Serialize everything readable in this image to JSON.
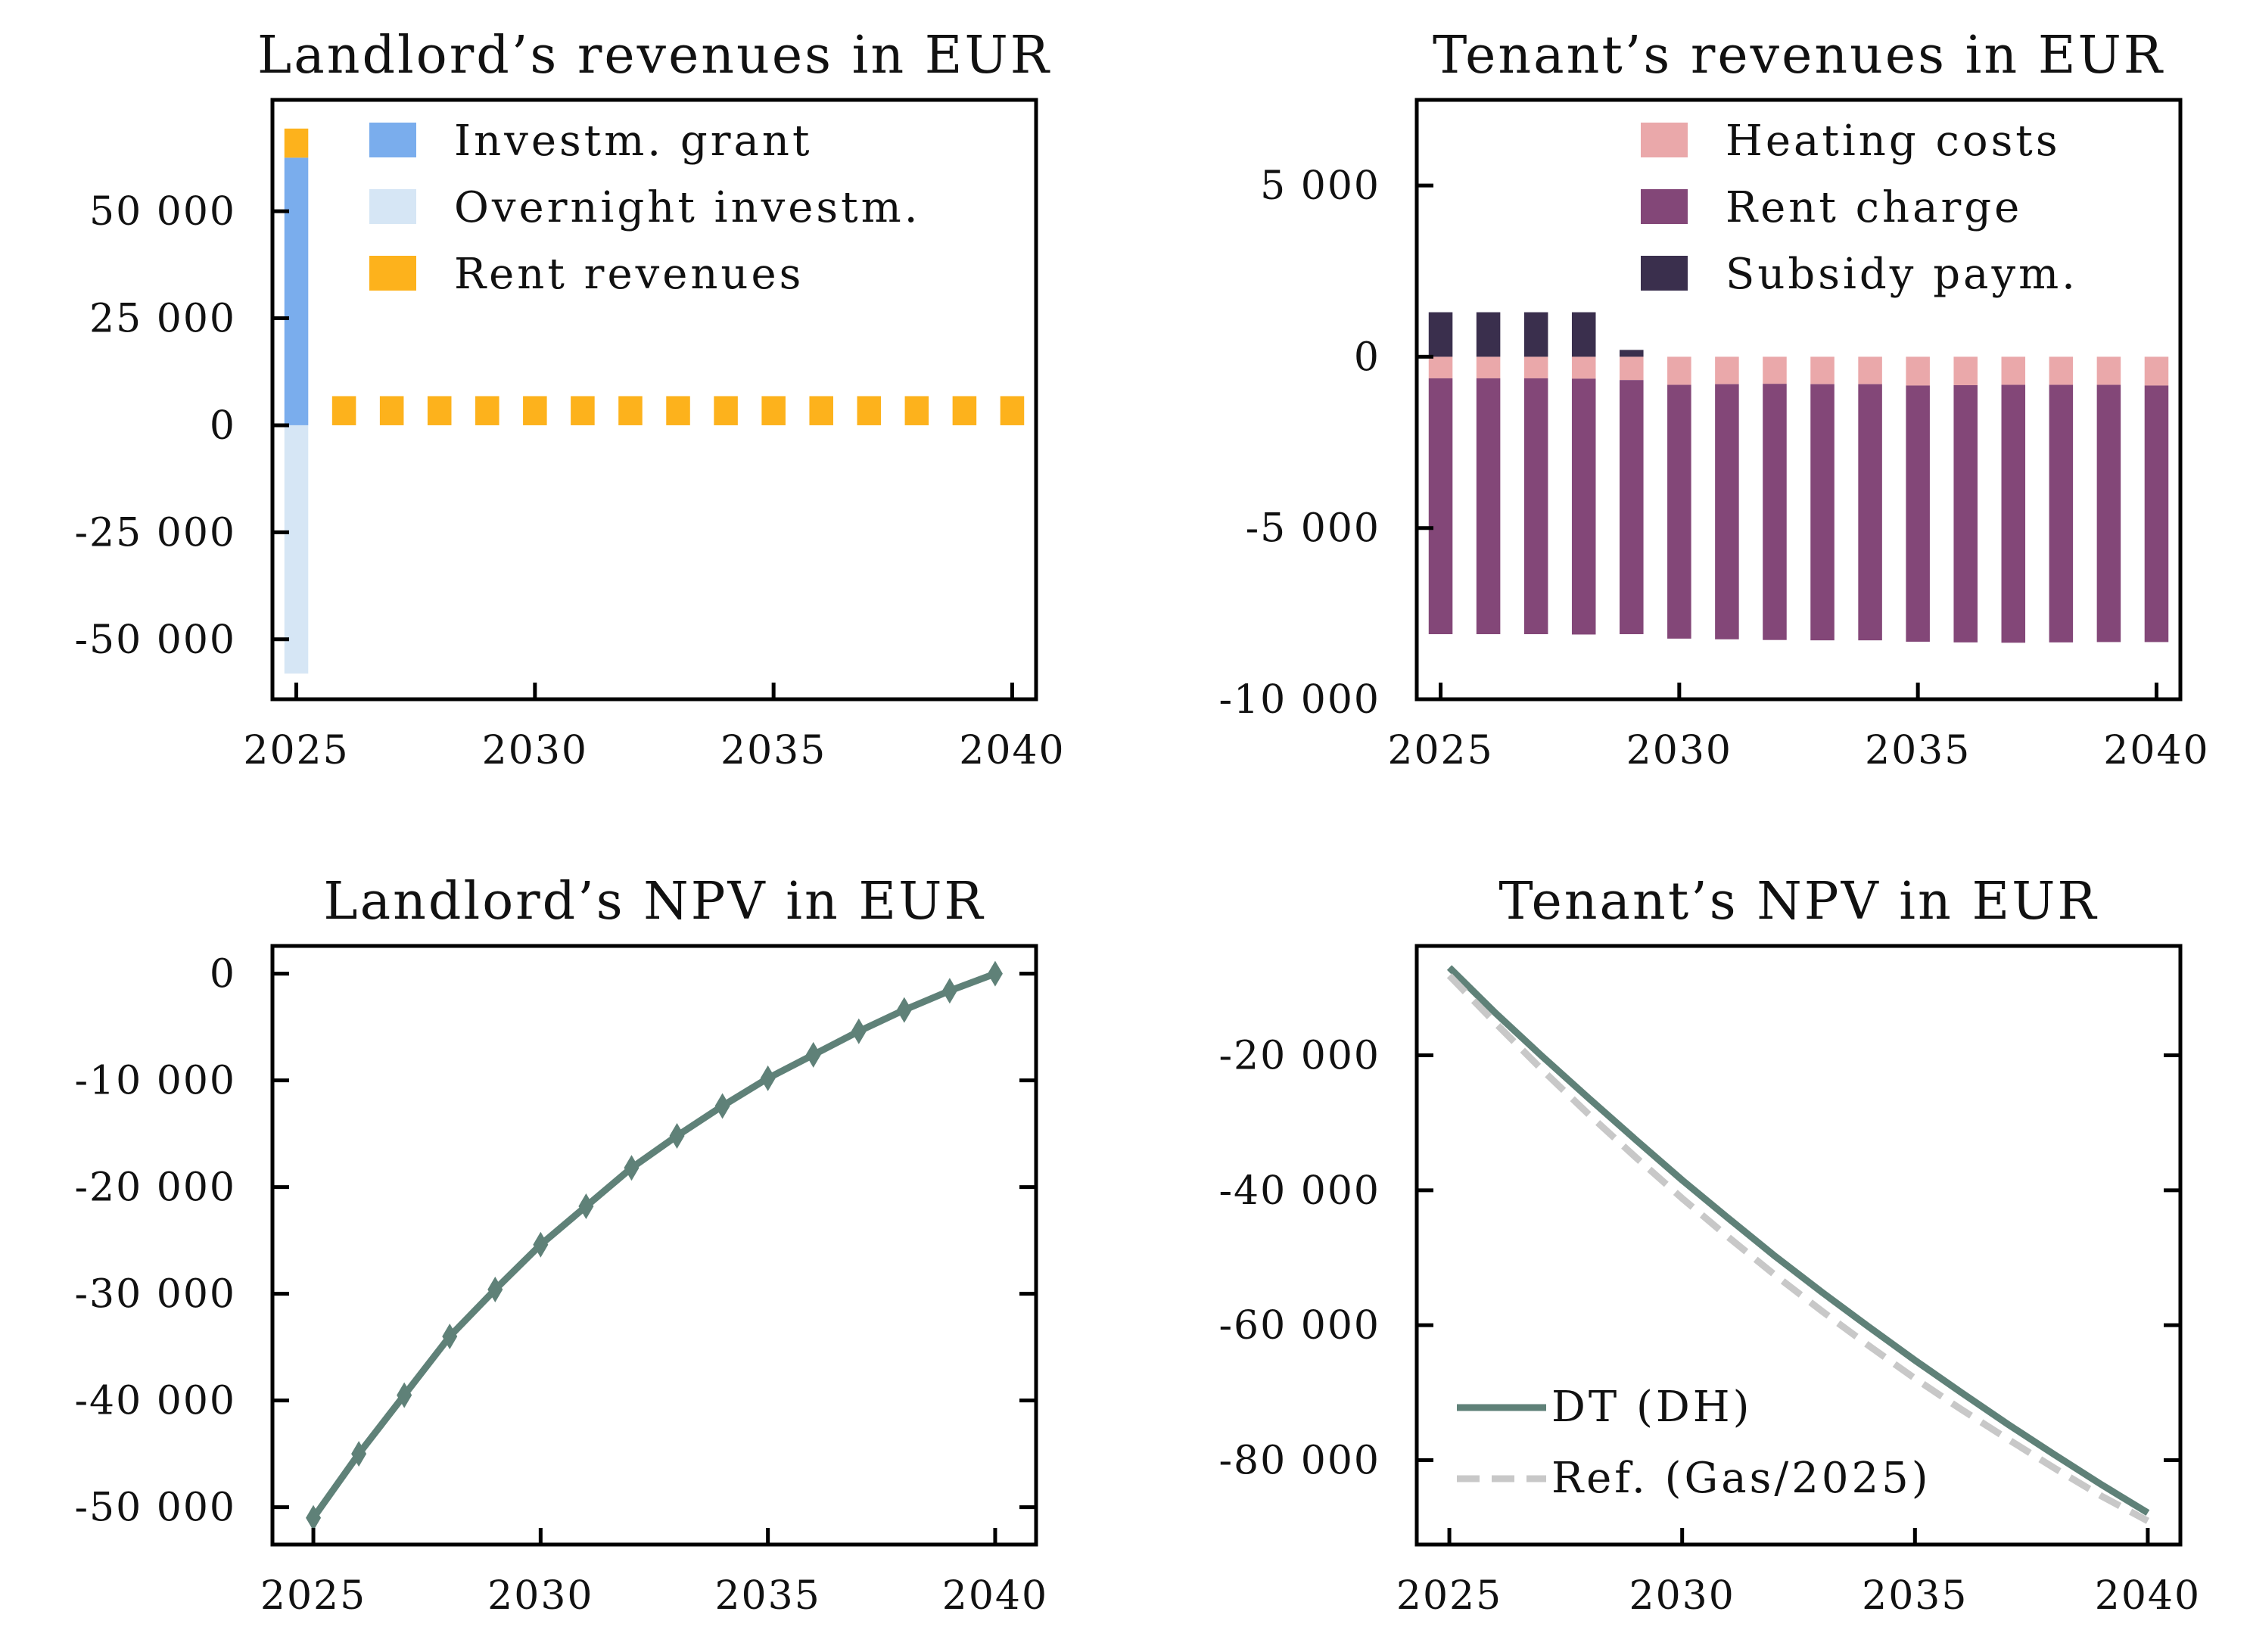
{
  "colors": {
    "investm_grant": "#7aaded",
    "overnight_investm": "#d6e6f5",
    "rent_revenues": "#fdb21c",
    "heating_costs": "#eaa8aa",
    "rent_charge": "#834778",
    "subsidy_paym": "#3a2f4d",
    "npv_line": "#5f8178",
    "ref_line": "#c8c8c8"
  },
  "chart_data": [
    {
      "type": "bar",
      "title": "Landlord’s revenues in EUR",
      "x": [
        2025,
        2026,
        2027,
        2028,
        2029,
        2030,
        2031,
        2032,
        2033,
        2034,
        2035,
        2036,
        2037,
        2038,
        2039,
        2040
      ],
      "xlim": [
        2024.5,
        2040.5
      ],
      "ylim": [
        -64000,
        76000
      ],
      "xticks": [
        {
          "v": 2025,
          "label": "2025"
        },
        {
          "v": 2030,
          "label": "2030"
        },
        {
          "v": 2035,
          "label": "2035"
        },
        {
          "v": 2040,
          "label": "2040"
        }
      ],
      "yticks": [
        {
          "v": 50000,
          "label": "50 000"
        },
        {
          "v": 25000,
          "label": "25 000"
        },
        {
          "v": 0,
          "label": "0"
        },
        {
          "v": -25000,
          "label": "-25 000"
        },
        {
          "v": -50000,
          "label": "-50 000"
        }
      ],
      "legend_position": "top-right",
      "series": [
        {
          "name": "Investm. grant",
          "color_key": "investm_grant",
          "values": [
            62500,
            0,
            0,
            0,
            0,
            0,
            0,
            0,
            0,
            0,
            0,
            0,
            0,
            0,
            0,
            0
          ]
        },
        {
          "name": "Overnight investm.",
          "color_key": "overnight_investm",
          "values": [
            -58000,
            0,
            0,
            0,
            0,
            0,
            0,
            0,
            0,
            0,
            0,
            0,
            0,
            0,
            0,
            0
          ]
        },
        {
          "name": "Rent revenues",
          "color_key": "rent_revenues",
          "values": [
            6800,
            6800,
            6800,
            6800,
            6800,
            6800,
            6800,
            6800,
            6800,
            6800,
            6800,
            6800,
            6800,
            6800,
            6800,
            6800
          ]
        }
      ]
    },
    {
      "type": "bar",
      "title": "Tenant’s revenues in EUR",
      "x": [
        2025,
        2026,
        2027,
        2028,
        2029,
        2030,
        2031,
        2032,
        2033,
        2034,
        2035,
        2036,
        2037,
        2038,
        2039,
        2040
      ],
      "xlim": [
        2024.5,
        2040.5
      ],
      "ylim": [
        -10000,
        7500
      ],
      "xticks": [
        {
          "v": 2025,
          "label": "2025"
        },
        {
          "v": 2030,
          "label": "2030"
        },
        {
          "v": 2035,
          "label": "2035"
        },
        {
          "v": 2040,
          "label": "2040"
        }
      ],
      "yticks": [
        {
          "v": 5000,
          "label": "5 000"
        },
        {
          "v": 0,
          "label": "0"
        },
        {
          "v": -5000,
          "label": "-5 000"
        },
        {
          "v": -10000,
          "label": "-10 000"
        }
      ],
      "legend_position": "top-right",
      "series": [
        {
          "name": "Heating costs",
          "color_key": "heating_costs",
          "values": [
            -630,
            -630,
            -630,
            -640,
            -680,
            -820,
            -800,
            -790,
            -800,
            -800,
            -840,
            -830,
            -820,
            -820,
            -820,
            -840
          ]
        },
        {
          "name": "Rent charge",
          "color_key": "rent_charge",
          "values": [
            -7470,
            -7470,
            -7470,
            -7470,
            -7420,
            -7410,
            -7450,
            -7480,
            -7480,
            -7480,
            -7480,
            -7510,
            -7530,
            -7520,
            -7510,
            -7490
          ]
        },
        {
          "name": "Subsidy paym.",
          "color_key": "subsidy_paym",
          "values": [
            1300,
            1300,
            1300,
            1300,
            200,
            0,
            0,
            0,
            0,
            0,
            0,
            0,
            0,
            0,
            0,
            0
          ]
        }
      ]
    },
    {
      "type": "line",
      "title": "Landlord’s NPV in EUR",
      "x": [
        2025,
        2026,
        2027,
        2028,
        2029,
        2030,
        2031,
        2032,
        2033,
        2034,
        2035,
        2036,
        2037,
        2038,
        2039,
        2040
      ],
      "xlim": [
        2024.1,
        2040.9
      ],
      "ylim": [
        -53500,
        2600
      ],
      "xticks": [
        {
          "v": 2025,
          "label": "2025"
        },
        {
          "v": 2030,
          "label": "2030"
        },
        {
          "v": 2035,
          "label": "2035"
        },
        {
          "v": 2040,
          "label": "2040"
        }
      ],
      "yticks": [
        {
          "v": 0,
          "label": "0"
        },
        {
          "v": -10000,
          "label": "-10 000"
        },
        {
          "v": -20000,
          "label": "-20 000"
        },
        {
          "v": -30000,
          "label": "-30 000"
        },
        {
          "v": -40000,
          "label": "-40 000"
        },
        {
          "v": -50000,
          "label": "-50 000"
        }
      ],
      "series": [
        {
          "color_key": "npv_line",
          "marker": "thin_diamond",
          "values": [
            -51000,
            -45000,
            -39500,
            -34000,
            -29600,
            -25400,
            -21800,
            -18200,
            -15200,
            -12400,
            -9800,
            -7600,
            -5400,
            -3400,
            -1600,
            0
          ]
        }
      ]
    },
    {
      "type": "line",
      "title": "Tenant’s NPV in EUR",
      "x": [
        2025,
        2026,
        2027,
        2028,
        2029,
        2030,
        2031,
        2032,
        2033,
        2034,
        2035,
        2036,
        2037,
        2038,
        2039,
        2040
      ],
      "xlim": [
        2024.3,
        2040.7
      ],
      "ylim": [
        -92500,
        -3800
      ],
      "xticks": [
        {
          "v": 2025,
          "label": "2025"
        },
        {
          "v": 2030,
          "label": "2030"
        },
        {
          "v": 2035,
          "label": "2035"
        },
        {
          "v": 2040,
          "label": "2040"
        }
      ],
      "yticks": [
        {
          "v": -20000,
          "label": "-20 000"
        },
        {
          "v": -40000,
          "label": "-40 000"
        },
        {
          "v": -60000,
          "label": "-60 000"
        },
        {
          "v": -80000,
          "label": "-80 000"
        }
      ],
      "legend_position": "lower-left",
      "series": [
        {
          "name": "DT (DH)",
          "color_key": "npv_line",
          "dash": false,
          "values": [
            -7000,
            -13800,
            -20200,
            -26400,
            -32500,
            -38500,
            -44200,
            -49800,
            -55100,
            -60200,
            -65200,
            -70000,
            -74700,
            -79200,
            -83600,
            -87800
          ]
        },
        {
          "name": "Ref. (Gas/2025)",
          "color_key": "ref_line",
          "dash": true,
          "values": [
            -8200,
            -15300,
            -22200,
            -28800,
            -35100,
            -41200,
            -47000,
            -52600,
            -57900,
            -63000,
            -67900,
            -72500,
            -76900,
            -81200,
            -85300,
            -89000
          ]
        }
      ]
    }
  ]
}
